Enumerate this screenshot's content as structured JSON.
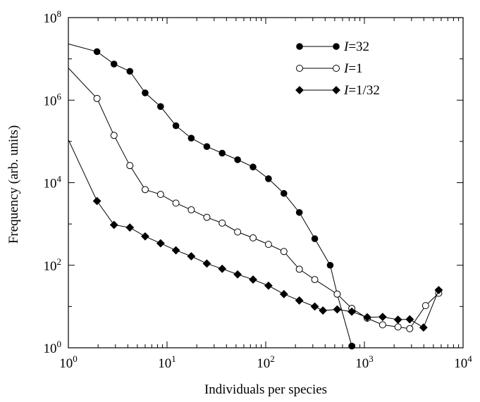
{
  "chart_data": {
    "type": "line",
    "title": "",
    "xlabel": "Individuals per species",
    "ylabel": "Frequency (arb. units)",
    "xscale": "log",
    "yscale": "log",
    "xlim": [
      1,
      10000
    ],
    "ylim": [
      1,
      100000000
    ],
    "x_ticks": [
      {
        "base": "10",
        "exp": "0",
        "value": 1
      },
      {
        "base": "10",
        "exp": "1",
        "value": 10
      },
      {
        "base": "10",
        "exp": "2",
        "value": 100
      },
      {
        "base": "10",
        "exp": "3",
        "value": 1000
      },
      {
        "base": "10",
        "exp": "4",
        "value": 10000
      }
    ],
    "y_ticks": [
      {
        "base": "10",
        "exp": "0",
        "value": 1
      },
      {
        "base": "10",
        "exp": "2",
        "value": 100
      },
      {
        "base": "10",
        "exp": "4",
        "value": 10000
      },
      {
        "base": "10",
        "exp": "6",
        "value": 1000000
      },
      {
        "base": "10",
        "exp": "8",
        "value": 100000000
      }
    ],
    "grid": false,
    "legend_position": "top-right",
    "series": [
      {
        "name_prefix": "I",
        "name_suffix": "=32",
        "marker": "filled-circle",
        "line_start": [
          1,
          23000000
        ],
        "points": [
          [
            1.95,
            15000000
          ],
          [
            2.9,
            7500000
          ],
          [
            4.2,
            5000000
          ],
          [
            6.0,
            1500000
          ],
          [
            8.6,
            700000
          ],
          [
            12.3,
            240000
          ],
          [
            17.6,
            120000
          ],
          [
            25.3,
            75000
          ],
          [
            36.2,
            52000
          ],
          [
            51.9,
            36000
          ],
          [
            74.4,
            24000
          ],
          [
            106.6,
            12500
          ],
          [
            152.8,
            5500
          ],
          [
            219,
            1900
          ],
          [
            314,
            440
          ],
          [
            450,
            100
          ],
          [
            530,
            20
          ],
          [
            745,
            1.1
          ]
        ]
      },
      {
        "name_prefix": "I",
        "name_suffix": "=1",
        "marker": "open-circle",
        "line_start": [
          1,
          6000000
        ],
        "points": [
          [
            1.95,
            1100000
          ],
          [
            2.9,
            140000
          ],
          [
            4.2,
            26000
          ],
          [
            6.0,
            6800
          ],
          [
            8.6,
            5200
          ],
          [
            12.3,
            3200
          ],
          [
            17.6,
            2200
          ],
          [
            25.3,
            1450
          ],
          [
            36.2,
            1050
          ],
          [
            51.9,
            640
          ],
          [
            74.4,
            460
          ],
          [
            106.6,
            320
          ],
          [
            152.8,
            215
          ],
          [
            219,
            80
          ],
          [
            314,
            45
          ],
          [
            530,
            20
          ],
          [
            745,
            9
          ],
          [
            1068,
            5.2
          ],
          [
            1530,
            3.6
          ],
          [
            2190,
            3.2
          ],
          [
            2880,
            2.9
          ],
          [
            4170,
            10.5
          ],
          [
            5660,
            21
          ]
        ]
      },
      {
        "name_prefix": "I",
        "name_suffix": "=1/32",
        "marker": "filled-diamond",
        "line_start": [
          1,
          110000
        ],
        "points": [
          [
            1.95,
            3600
          ],
          [
            2.9,
            950
          ],
          [
            4.2,
            820
          ],
          [
            6.0,
            500
          ],
          [
            8.6,
            340
          ],
          [
            12.3,
            230
          ],
          [
            17.6,
            165
          ],
          [
            25.3,
            110
          ],
          [
            36.2,
            82
          ],
          [
            51.9,
            60
          ],
          [
            74.4,
            45
          ],
          [
            106.6,
            32
          ],
          [
            152.8,
            20
          ],
          [
            219,
            14
          ],
          [
            314,
            10
          ],
          [
            380,
            8
          ],
          [
            530,
            8.5
          ],
          [
            745,
            7.5
          ],
          [
            1068,
            5.5
          ],
          [
            1530,
            5.6
          ],
          [
            2190,
            4.8
          ],
          [
            2880,
            4.9
          ],
          [
            3970,
            3.1
          ],
          [
            5660,
            25
          ]
        ]
      }
    ]
  }
}
